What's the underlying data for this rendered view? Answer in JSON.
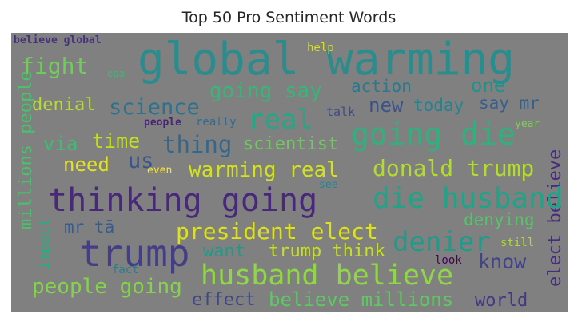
{
  "title": "Top 50 Pro Sentiment Words",
  "words": [
    {
      "text": "global warming",
      "color": "#2a8c8c"
    },
    {
      "text": "believe global",
      "color": "#46317f"
    },
    {
      "text": "help",
      "color": "#d8e219"
    },
    {
      "text": "epa",
      "color": "#38b977"
    },
    {
      "text": "fight",
      "color": "#6ece58"
    },
    {
      "text": "going say",
      "color": "#35b779"
    },
    {
      "text": "action",
      "color": "#2a788e"
    },
    {
      "text": "one",
      "color": "#21918c"
    },
    {
      "text": "denial",
      "color": "#b5de2b"
    },
    {
      "text": "science",
      "color": "#2c728e"
    },
    {
      "text": "real",
      "color": "#22a884"
    },
    {
      "text": "new",
      "color": "#3b528b"
    },
    {
      "text": "today",
      "color": "#26828e"
    },
    {
      "text": "say mr",
      "color": "#35608d"
    },
    {
      "text": "talk",
      "color": "#3e4a89"
    },
    {
      "text": "people",
      "color": "#482475"
    },
    {
      "text": "really",
      "color": "#2f6c8e"
    },
    {
      "text": "year",
      "color": "#7ad151"
    },
    {
      "text": "going die",
      "color": "#2db27d"
    },
    {
      "text": "via",
      "color": "#3dbc74"
    },
    {
      "text": "time",
      "color": "#c2df23"
    },
    {
      "text": "thing",
      "color": "#31688e"
    },
    {
      "text": "scientist",
      "color": "#6ccd5a"
    },
    {
      "text": "millions people",
      "color": "#4ac16d"
    },
    {
      "text": "need",
      "color": "#e5e419"
    },
    {
      "text": "us",
      "color": "#39568c"
    },
    {
      "text": "even",
      "color": "#fde725"
    },
    {
      "text": "warming real",
      "color": "#d2e21b"
    },
    {
      "text": "donald trump",
      "color": "#b2dd2d"
    },
    {
      "text": "elect believe",
      "color": "#472d7b"
    },
    {
      "text": "see",
      "color": "#25848e"
    },
    {
      "text": "thinking going",
      "color": "#482878"
    },
    {
      "text": "die husband",
      "color": "#20a386"
    },
    {
      "text": "mr tā",
      "color": "#365c8d"
    },
    {
      "text": "denying",
      "color": "#54c568"
    },
    {
      "text": "president elect",
      "color": "#dde318"
    },
    {
      "text": "impact",
      "color": "#27ad81"
    },
    {
      "text": "trump",
      "color": "#433e85"
    },
    {
      "text": "want",
      "color": "#1f9a8a"
    },
    {
      "text": "trump think",
      "color": "#c5e021"
    },
    {
      "text": "denier",
      "color": "#1e9b8a"
    },
    {
      "text": "still",
      "color": "#addc30"
    },
    {
      "text": "look",
      "color": "#440154"
    },
    {
      "text": "know",
      "color": "#414487"
    },
    {
      "text": "fact",
      "color": "#277f8e"
    },
    {
      "text": "husband believe",
      "color": "#8fd744"
    },
    {
      "text": "people going",
      "color": "#84d44b"
    },
    {
      "text": "effect",
      "color": "#3f4788"
    },
    {
      "text": "believe millions",
      "color": "#5ec962"
    },
    {
      "text": "world",
      "color": "#453781"
    }
  ]
}
